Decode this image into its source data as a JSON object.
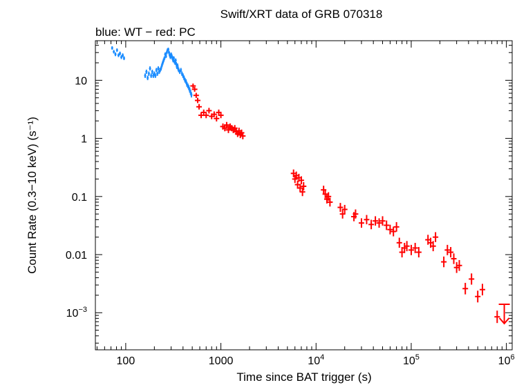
{
  "chart_data": {
    "type": "scatter",
    "title": "Swift/XRT data of GRB 070318",
    "subtitle": "blue: WT − red: PC",
    "xlabel": "Time since BAT trigger (s)",
    "ylabel": "Count Rate (0.3−10 keV) (s⁻¹)",
    "xscale": "log",
    "yscale": "log",
    "xlim": [
      48,
      1150000
    ],
    "ylim": [
      0.00023,
      48
    ],
    "x_ticks": [
      {
        "value": 100,
        "label": "100"
      },
      {
        "value": 1000,
        "label": "1000"
      },
      {
        "value": 10000,
        "base": "10",
        "exp": "4"
      },
      {
        "value": 100000,
        "base": "10",
        "exp": "5"
      },
      {
        "value": 1000000,
        "base": "10",
        "exp": "6"
      }
    ],
    "y_ticks": [
      {
        "value": 0.001,
        "base": "10",
        "exp": "−3"
      },
      {
        "value": 0.01,
        "label": "0.01"
      },
      {
        "value": 0.1,
        "label": "0.1"
      },
      {
        "value": 1,
        "label": "1"
      },
      {
        "value": 10,
        "label": "10"
      }
    ],
    "grid": false,
    "series": [
      {
        "mode": "WT",
        "color": "#1a8cff",
        "points": [
          [
            72,
            36
          ],
          [
            75,
            31
          ],
          [
            78,
            28
          ],
          [
            81,
            33
          ],
          [
            84,
            27
          ],
          [
            87,
            29
          ],
          [
            90,
            25
          ],
          [
            93,
            27
          ],
          [
            96,
            24
          ],
          [
            160,
            12
          ],
          [
            165,
            14
          ],
          [
            170,
            11
          ],
          [
            175,
            13
          ],
          [
            180,
            16
          ],
          [
            185,
            12
          ],
          [
            190,
            14
          ],
          [
            195,
            12
          ],
          [
            200,
            13
          ],
          [
            205,
            12
          ],
          [
            210,
            15
          ],
          [
            215,
            13
          ],
          [
            220,
            16
          ],
          [
            225,
            14
          ],
          [
            230,
            15
          ],
          [
            235,
            16
          ],
          [
            240,
            18
          ],
          [
            245,
            20
          ],
          [
            250,
            22
          ],
          [
            255,
            24
          ],
          [
            260,
            28
          ],
          [
            265,
            26
          ],
          [
            270,
            30
          ],
          [
            275,
            33
          ],
          [
            280,
            34
          ],
          [
            285,
            30
          ],
          [
            290,
            27
          ],
          [
            295,
            25
          ],
          [
            300,
            28
          ],
          [
            305,
            26
          ],
          [
            310,
            24
          ],
          [
            315,
            22
          ],
          [
            320,
            24
          ],
          [
            325,
            21
          ],
          [
            330,
            20
          ],
          [
            335,
            22
          ],
          [
            340,
            19
          ],
          [
            345,
            17
          ],
          [
            350,
            18
          ],
          [
            355,
            16
          ],
          [
            360,
            15
          ],
          [
            370,
            14
          ],
          [
            380,
            15
          ],
          [
            390,
            13
          ],
          [
            400,
            12
          ],
          [
            410,
            11
          ],
          [
            420,
            10
          ],
          [
            430,
            9.5
          ],
          [
            440,
            8.5
          ],
          [
            450,
            8
          ],
          [
            460,
            7.5
          ],
          [
            470,
            6.8
          ],
          [
            480,
            6.2
          ],
          [
            490,
            5.6
          ]
        ]
      },
      {
        "mode": "PC",
        "color": "#ff0000",
        "points": [
          [
            510,
            8
          ],
          [
            530,
            7
          ],
          [
            550,
            5.5
          ],
          [
            570,
            4.5
          ],
          [
            590,
            3.5
          ],
          [
            620,
            2.5
          ],
          [
            660,
            2.8
          ],
          [
            700,
            2.5
          ],
          [
            750,
            3.0
          ],
          [
            800,
            2.4
          ],
          [
            850,
            2.6
          ],
          [
            900,
            2.2
          ],
          [
            950,
            2.8
          ],
          [
            1000,
            2.5
          ],
          [
            1050,
            1.6
          ],
          [
            1100,
            1.5
          ],
          [
            1150,
            1.7
          ],
          [
            1200,
            1.4
          ],
          [
            1250,
            1.6
          ],
          [
            1300,
            1.5
          ],
          [
            1350,
            1.4
          ],
          [
            1400,
            1.5
          ],
          [
            1450,
            1.3
          ],
          [
            1500,
            1.2
          ],
          [
            1550,
            1.35
          ],
          [
            1600,
            1.15
          ],
          [
            1650,
            1.25
          ],
          [
            1700,
            1.1
          ],
          [
            5800,
            0.25
          ],
          [
            6000,
            0.2
          ],
          [
            6200,
            0.23
          ],
          [
            6400,
            0.16
          ],
          [
            6600,
            0.21
          ],
          [
            6800,
            0.14
          ],
          [
            7000,
            0.19
          ],
          [
            7200,
            0.12
          ],
          [
            7400,
            0.15
          ],
          [
            12000,
            0.13
          ],
          [
            12500,
            0.11
          ],
          [
            13000,
            0.09
          ],
          [
            13500,
            0.1
          ],
          [
            14000,
            0.08
          ],
          [
            18000,
            0.065
          ],
          [
            19000,
            0.05
          ],
          [
            20000,
            0.06
          ],
          [
            25000,
            0.045
          ],
          [
            26000,
            0.05
          ],
          [
            30000,
            0.035
          ],
          [
            34000,
            0.04
          ],
          [
            38000,
            0.033
          ],
          [
            42000,
            0.038
          ],
          [
            46000,
            0.035
          ],
          [
            50000,
            0.038
          ],
          [
            55000,
            0.032
          ],
          [
            60000,
            0.027
          ],
          [
            65000,
            0.025
          ],
          [
            70000,
            0.03
          ],
          [
            75000,
            0.016
          ],
          [
            80000,
            0.011
          ],
          [
            85000,
            0.013
          ],
          [
            90000,
            0.014
          ],
          [
            100000,
            0.012
          ],
          [
            110000,
            0.013
          ],
          [
            120000,
            0.011
          ],
          [
            150000,
            0.018
          ],
          [
            160000,
            0.016
          ],
          [
            170000,
            0.014
          ],
          [
            180000,
            0.02
          ],
          [
            220000,
            0.0075
          ],
          [
            240000,
            0.012
          ],
          [
            260000,
            0.011
          ],
          [
            280000,
            0.0085
          ],
          [
            300000,
            0.006
          ],
          [
            320000,
            0.0065
          ],
          [
            370000,
            0.0026
          ],
          [
            430000,
            0.0038
          ],
          [
            500000,
            0.0019
          ],
          [
            560000,
            0.0025
          ],
          [
            800000,
            0.00085
          ]
        ]
      }
    ],
    "upper_limit": {
      "x": 950000,
      "y": 0.0014,
      "color": "#ff0000"
    }
  }
}
